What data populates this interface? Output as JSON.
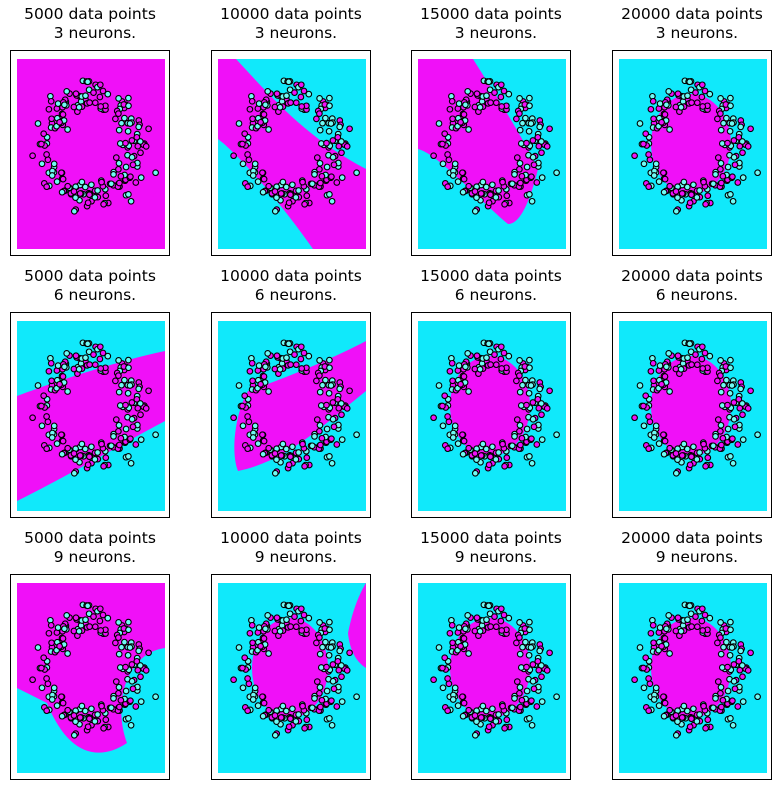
{
  "figure": {
    "background": "#ffffff",
    "region_colors": {
      "class_0": "#10e9fb",
      "class_1": "#f010f8"
    },
    "point_colors": {
      "class_0": "#6ffbf4",
      "class_1": "#f010f8",
      "edge": "#000000"
    }
  },
  "chart_data": [
    {
      "type": "scatter",
      "title_line1": "5000 data points",
      "title_line2": "3 neurons.",
      "data_points": 5000,
      "neurons": 3,
      "boundary": "wide-tilted",
      "grid": false,
      "ticks": false
    },
    {
      "type": "scatter",
      "title_line1": "10000 data points",
      "title_line2": "3 neurons.",
      "data_points": 10000,
      "neurons": 3,
      "boundary": "diagonal-band",
      "grid": false,
      "ticks": false
    },
    {
      "type": "scatter",
      "title_line1": "15000 data points",
      "title_line2": "3 neurons.",
      "data_points": 15000,
      "neurons": 3,
      "boundary": "diagonal-band-left",
      "grid": false,
      "ticks": false
    },
    {
      "type": "scatter",
      "title_line1": "20000 data points",
      "title_line2": "3 neurons.",
      "data_points": 20000,
      "neurons": 3,
      "boundary": "ellipse",
      "grid": false,
      "ticks": false
    },
    {
      "type": "scatter",
      "title_line1": "5000 data points",
      "title_line2": "6 neurons.",
      "data_points": 5000,
      "neurons": 6,
      "boundary": "horizontal-band",
      "grid": false,
      "ticks": false
    },
    {
      "type": "scatter",
      "title_line1": "10000 data points",
      "title_line2": "6 neurons.",
      "data_points": 10000,
      "neurons": 6,
      "boundary": "rising-band",
      "grid": false,
      "ticks": false
    },
    {
      "type": "scatter",
      "title_line1": "15000 data points",
      "title_line2": "6 neurons.",
      "data_points": 15000,
      "neurons": 6,
      "boundary": "ellipse",
      "grid": false,
      "ticks": false
    },
    {
      "type": "scatter",
      "title_line1": "20000 data points",
      "title_line2": "6 neurons.",
      "data_points": 20000,
      "neurons": 6,
      "boundary": "ellipse",
      "grid": false,
      "ticks": false
    },
    {
      "type": "scatter",
      "title_line1": "5000 data points",
      "title_line2": "9 neurons.",
      "data_points": 5000,
      "neurons": 9,
      "boundary": "ellipse-plus-corner",
      "grid": false,
      "ticks": false
    },
    {
      "type": "scatter",
      "title_line1": "10000 data points",
      "title_line2": "9 neurons.",
      "data_points": 10000,
      "neurons": 9,
      "boundary": "ellipse-plus-right-strip",
      "grid": false,
      "ticks": false
    },
    {
      "type": "scatter",
      "title_line1": "15000 data points",
      "title_line2": "9 neurons.",
      "data_points": 15000,
      "neurons": 9,
      "boundary": "ellipse",
      "grid": false,
      "ticks": false
    },
    {
      "type": "scatter",
      "title_line1": "20000 data points",
      "title_line2": "9 neurons.",
      "data_points": 20000,
      "neurons": 9,
      "boundary": "ellipse",
      "grid": false,
      "ticks": false
    }
  ]
}
